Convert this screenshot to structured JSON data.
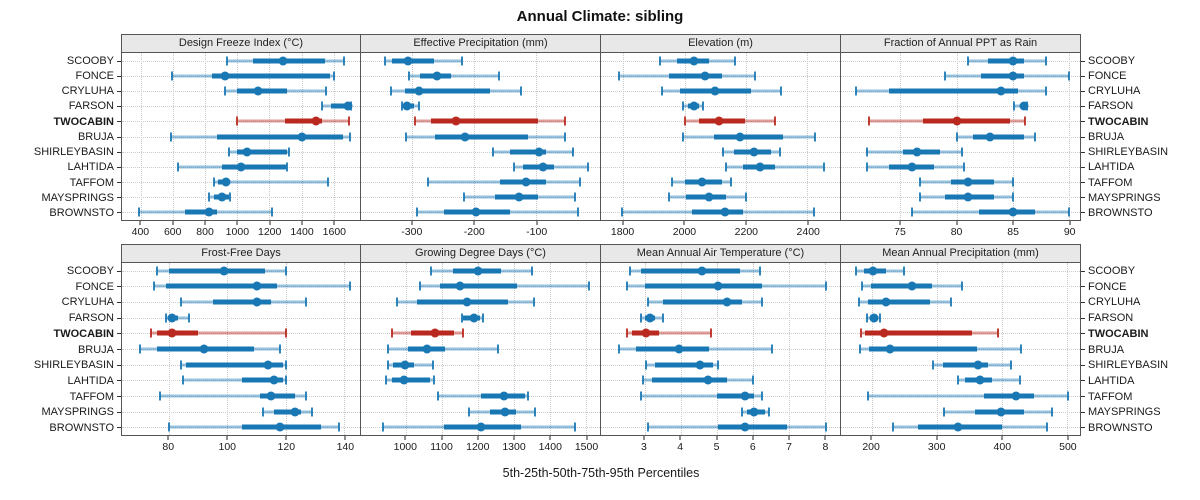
{
  "title": "Annual Climate: sibling",
  "caption": "5th-25th-50th-75th-95th Percentiles",
  "colors": {
    "series": "#1978B4",
    "highlight": "#B9291F",
    "strip_bg": "#E8E8E8",
    "grid": "#C9C9C9",
    "border": "#555555"
  },
  "chart_data": {
    "type": "interval-dotplot",
    "note": "Each row shows 5th-25th-50th-75th-95th percentiles: thin line 5th-95th with end caps, thick bar 25th-75th, dot 50th",
    "percentiles": [
      5,
      25,
      50,
      75,
      95
    ],
    "categories": [
      "SCOOBY",
      "FONCE",
      "CRYLUHA",
      "FARSON",
      "TWOCABIN",
      "BRUJA",
      "SHIRLEYBASIN",
      "LAHTIDA",
      "TAFFOM",
      "MAYSPRINGS",
      "BROWNSTO"
    ],
    "highlight": "TWOCABIN",
    "legend_position": "none",
    "grid": "dotted",
    "panels": [
      {
        "title": "Design Freeze Index (°C)",
        "axis_range": [
          280,
          1765
        ],
        "ticks": [
          400,
          600,
          800,
          1000,
          1200,
          1400,
          1600
        ],
        "values": [
          [
            935,
            1095,
            1285,
            1545,
            1665
          ],
          [
            590,
            840,
            920,
            1575,
            1600
          ],
          [
            925,
            1000,
            1130,
            1310,
            1555
          ],
          [
            1530,
            1585,
            1690,
            1700,
            1710
          ],
          [
            1000,
            1300,
            1490,
            1530,
            1695
          ],
          [
            585,
            875,
            1405,
            1660,
            1700
          ],
          [
            950,
            1000,
            1060,
            1310,
            1320
          ],
          [
            630,
            905,
            1025,
            1305,
            1310
          ],
          [
            855,
            880,
            930,
            950,
            1565
          ],
          [
            825,
            855,
            905,
            945,
            955
          ],
          [
            385,
            670,
            825,
            870,
            1215
          ]
        ]
      },
      {
        "title": "Effective Precipitation (mm)",
        "axis_range": [
          -383,
          3
        ],
        "ticks": [
          -300,
          -200,
          -100
        ],
        "values": [
          [
            -345,
            -333,
            -307,
            -265,
            -220
          ],
          [
            -305,
            -287,
            -260,
            -237,
            -160
          ],
          [
            -335,
            -312,
            -290,
            -175,
            -125
          ],
          [
            -316,
            -312,
            -308,
            -298,
            -290
          ],
          [
            -295,
            -270,
            -230,
            -97,
            -53
          ],
          [
            -310,
            -263,
            -215,
            -113,
            -54
          ],
          [
            -170,
            -142,
            -95,
            -84,
            -41
          ],
          [
            -136,
            -121,
            -89,
            -71,
            -16
          ],
          [
            -274,
            -158,
            -116,
            -84,
            -30
          ],
          [
            -217,
            -166,
            -128,
            -97,
            -37
          ],
          [
            -292,
            -249,
            -197,
            -142,
            -33
          ]
        ]
      },
      {
        "title": "Elevation (m)",
        "axis_range": [
          1727,
          2506
        ],
        "ticks": [
          1800,
          2000,
          2200,
          2400
        ],
        "values": [
          [
            1920,
            1975,
            2030,
            2080,
            2165
          ],
          [
            1785,
            1950,
            2065,
            2120,
            2230
          ],
          [
            1925,
            1985,
            2100,
            2215,
            2315
          ],
          [
            1995,
            2010,
            2030,
            2045,
            2060
          ],
          [
            2000,
            2045,
            2110,
            2195,
            2295
          ],
          [
            1995,
            2095,
            2180,
            2320,
            2425
          ],
          [
            2125,
            2160,
            2225,
            2280,
            2310
          ],
          [
            2135,
            2190,
            2245,
            2295,
            2455
          ],
          [
            1960,
            2000,
            2055,
            2120,
            2150
          ],
          [
            1950,
            2005,
            2080,
            2135,
            2200
          ],
          [
            1795,
            2025,
            2130,
            2190,
            2420
          ]
        ]
      },
      {
        "title": "Fraction of Annual PPT as Rain",
        "axis_range": [
          69.7,
          91
        ],
        "ticks": [
          75,
          80,
          85,
          90
        ],
        "values": [
          [
            81,
            82.8,
            85,
            86,
            88
          ],
          [
            79,
            82.2,
            85,
            86,
            90
          ],
          [
            71,
            74,
            84,
            85.5,
            88
          ],
          [
            85.1,
            85.7,
            86,
            86.2,
            86.3
          ],
          [
            72.2,
            77,
            80,
            84.8,
            86.1
          ],
          [
            80,
            81.5,
            83,
            86,
            87
          ],
          [
            72,
            75.2,
            76.5,
            78.5,
            80.5
          ],
          [
            72,
            74,
            76,
            78,
            80.7
          ],
          [
            76.7,
            79.5,
            81,
            83.3,
            85
          ],
          [
            76.7,
            79,
            81,
            83.3,
            85
          ],
          [
            76,
            82,
            85,
            87,
            90
          ]
        ]
      },
      {
        "title": "Frost-Free Days",
        "axis_range": [
          64,
          145.3
        ],
        "ticks": [
          80,
          100,
          120,
          140
        ],
        "values": [
          [
            76,
            80,
            99,
            113,
            120
          ],
          [
            75,
            79,
            110,
            117,
            142
          ],
          [
            84,
            95,
            110,
            115,
            127
          ],
          [
            79,
            80,
            81,
            83,
            87
          ],
          [
            74,
            76,
            81,
            90,
            120
          ],
          [
            70,
            76,
            92,
            109,
            118
          ],
          [
            84,
            86,
            114,
            119,
            120
          ],
          [
            85,
            105,
            116,
            119,
            120
          ],
          [
            77,
            111,
            115,
            123,
            127
          ],
          [
            112,
            116,
            123,
            125,
            129
          ],
          [
            80,
            105,
            118,
            132,
            138
          ]
        ]
      },
      {
        "title": "Growing Degree Days (°C)",
        "axis_range": [
          875,
          1540
        ],
        "ticks": [
          1000,
          1100,
          1200,
          1300,
          1400,
          1500
        ],
        "values": [
          [
            1070,
            1130,
            1200,
            1265,
            1350
          ],
          [
            1040,
            1095,
            1150,
            1310,
            1510
          ],
          [
            975,
            1030,
            1170,
            1285,
            1355
          ],
          [
            1155,
            1160,
            1190,
            1205,
            1215
          ],
          [
            960,
            1015,
            1080,
            1135,
            1160
          ],
          [
            950,
            1005,
            1060,
            1110,
            1255
          ],
          [
            950,
            965,
            997,
            1023,
            1075
          ],
          [
            945,
            960,
            995,
            1068,
            1077
          ],
          [
            1090,
            1210,
            1272,
            1330,
            1340
          ],
          [
            1175,
            1235,
            1275,
            1305,
            1360
          ],
          [
            935,
            1105,
            1210,
            1320,
            1470
          ]
        ]
      },
      {
        "title": "Mean Annual Air Temperature (°C)",
        "axis_range": [
          1.79,
          8.43
        ],
        "ticks": [
          3,
          4,
          5,
          6,
          7,
          8
        ],
        "values": [
          [
            2.6,
            2.9,
            4.6,
            5.65,
            6.2
          ],
          [
            2.5,
            3.0,
            5.05,
            6.25,
            8.05
          ],
          [
            3.1,
            3.5,
            5.3,
            5.7,
            6.25
          ],
          [
            2.9,
            3.0,
            3.15,
            3.3,
            3.5
          ],
          [
            2.5,
            2.65,
            3.05,
            3.4,
            4.85
          ],
          [
            2.3,
            2.75,
            3.95,
            4.8,
            6.55
          ],
          [
            3.05,
            3.3,
            4.55,
            4.9,
            5.05
          ],
          [
            2.95,
            3.2,
            4.75,
            5.3,
            6.0
          ],
          [
            2.9,
            5.0,
            5.8,
            6.05,
            6.25
          ],
          [
            5.7,
            5.85,
            6.05,
            6.35,
            6.45
          ],
          [
            3.1,
            5.05,
            5.8,
            6.95,
            8.05
          ]
        ]
      },
      {
        "title": "Mean Annual Precipitation (mm)",
        "axis_range": [
          152.6,
          520
        ],
        "ticks": [
          200,
          300,
          400,
          500
        ],
        "values": [
          [
            175,
            188,
            202,
            222,
            250
          ],
          [
            185,
            199,
            262,
            292,
            338
          ],
          [
            180,
            194,
            222,
            289,
            322
          ],
          [
            193,
            197,
            203,
            210,
            213
          ],
          [
            184,
            190,
            219,
            354,
            394
          ],
          [
            182,
            196,
            228,
            361,
            430
          ],
          [
            294,
            310,
            363,
            379,
            414
          ],
          [
            333,
            343,
            366,
            385,
            427
          ],
          [
            194,
            372,
            422,
            449,
            502
          ],
          [
            311,
            359,
            399,
            434,
            477
          ],
          [
            232,
            271,
            332,
            400,
            469
          ]
        ]
      }
    ]
  }
}
